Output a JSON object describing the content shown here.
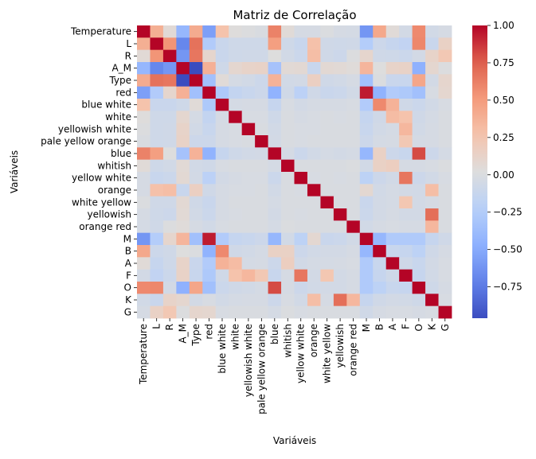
{
  "chart_data": {
    "type": "heatmap",
    "title": "Matriz de Correlação",
    "xlabel": "Variáveis",
    "ylabel": "Variáveis",
    "variables": [
      "Temperature",
      "L",
      "R",
      "A_M",
      "Type",
      "red",
      "blue white",
      "white",
      "yellowish white",
      "pale yellow orange",
      "blue",
      "whitish",
      "yellow white",
      "orange",
      "white yellow",
      "yellowish",
      "orange red",
      "M",
      "B",
      "A",
      "F",
      "O",
      "K",
      "G"
    ],
    "matrix": [
      [
        1.0,
        0.39,
        0.06,
        -0.42,
        0.41,
        -0.56,
        0.27,
        0.03,
        0.01,
        -0.01,
        0.61,
        0.05,
        -0.03,
        -0.03,
        0.0,
        -0.03,
        -0.04,
        -0.61,
        0.43,
        0.05,
        -0.05,
        0.58,
        -0.06,
        -0.03
      ],
      [
        0.39,
        1.0,
        0.53,
        -0.69,
        0.68,
        -0.26,
        -0.11,
        -0.08,
        -0.08,
        -0.08,
        0.48,
        -0.08,
        -0.12,
        0.28,
        -0.07,
        -0.08,
        -0.07,
        -0.25,
        -0.09,
        -0.13,
        -0.16,
        0.59,
        -0.11,
        0.14
      ],
      [
        0.06,
        0.53,
        1.0,
        -0.61,
        0.66,
        0.1,
        -0.11,
        -0.08,
        -0.07,
        -0.07,
        0.02,
        -0.06,
        -0.1,
        0.3,
        -0.07,
        -0.09,
        0.01,
        0.1,
        -0.07,
        -0.08,
        -0.1,
        -0.05,
        0.12,
        0.23
      ],
      [
        -0.42,
        -0.69,
        -0.61,
        1.0,
        -0.96,
        0.38,
        -0.08,
        0.09,
        0.12,
        0.13,
        -0.33,
        0.06,
        0.07,
        -0.12,
        0.07,
        0.06,
        0.04,
        0.35,
        0.02,
        0.12,
        0.13,
        -0.46,
        0.09,
        0.01
      ],
      [
        0.41,
        0.68,
        0.66,
        -0.96,
        1.0,
        -0.35,
        0.05,
        -0.04,
        -0.06,
        -0.09,
        0.37,
        -0.06,
        -0.05,
        0.16,
        -0.07,
        -0.06,
        -0.03,
        -0.35,
        0.0,
        -0.11,
        -0.12,
        0.44,
        -0.05,
        0.1
      ],
      [
        -0.56,
        -0.26,
        0.1,
        0.38,
        -0.35,
        1.0,
        -0.28,
        -0.15,
        -0.12,
        -0.09,
        -0.45,
        -0.07,
        -0.2,
        -0.07,
        -0.11,
        -0.1,
        -0.06,
        0.94,
        -0.45,
        -0.26,
        -0.28,
        -0.35,
        -0.02,
        0.09
      ],
      [
        0.27,
        -0.11,
        -0.11,
        -0.08,
        0.05,
        -0.28,
        1.0,
        -0.04,
        -0.03,
        -0.03,
        -0.13,
        -0.02,
        -0.05,
        -0.03,
        -0.03,
        -0.03,
        -0.02,
        -0.26,
        0.58,
        0.37,
        -0.07,
        -0.1,
        -0.06,
        -0.02
      ],
      [
        0.03,
        -0.08,
        -0.08,
        0.09,
        -0.04,
        -0.15,
        -0.04,
        1.0,
        -0.02,
        -0.02,
        -0.08,
        -0.01,
        -0.03,
        -0.02,
        -0.01,
        -0.02,
        -0.01,
        -0.14,
        -0.07,
        0.31,
        0.27,
        -0.07,
        -0.04,
        -0.01
      ],
      [
        0.01,
        -0.08,
        -0.07,
        0.12,
        -0.06,
        -0.12,
        -0.03,
        -0.02,
        1.0,
        -0.01,
        -0.06,
        -0.01,
        -0.02,
        -0.02,
        -0.01,
        -0.01,
        -0.01,
        -0.12,
        -0.06,
        -0.04,
        0.34,
        -0.06,
        -0.03,
        -0.01
      ],
      [
        -0.01,
        -0.08,
        -0.07,
        0.13,
        -0.09,
        -0.09,
        -0.03,
        -0.02,
        -0.01,
        1.0,
        -0.05,
        -0.01,
        -0.02,
        -0.01,
        -0.01,
        -0.01,
        -0.01,
        -0.09,
        -0.04,
        -0.03,
        0.23,
        -0.04,
        -0.03,
        -0.01
      ],
      [
        0.61,
        0.48,
        0.02,
        -0.33,
        0.37,
        -0.45,
        -0.13,
        -0.08,
        -0.06,
        -0.05,
        1.0,
        -0.04,
        -0.1,
        -0.06,
        -0.04,
        -0.05,
        -0.04,
        -0.42,
        0.14,
        -0.09,
        -0.12,
        0.81,
        -0.09,
        -0.04
      ],
      [
        0.05,
        -0.08,
        -0.06,
        0.06,
        -0.06,
        -0.07,
        -0.02,
        -0.01,
        -0.01,
        -0.01,
        -0.04,
        1.0,
        -0.01,
        -0.01,
        -0.01,
        -0.01,
        0.0,
        -0.06,
        0.14,
        0.17,
        -0.03,
        -0.03,
        -0.02,
        0.0
      ],
      [
        -0.03,
        -0.12,
        -0.1,
        0.07,
        -0.05,
        -0.2,
        -0.05,
        -0.03,
        -0.02,
        -0.02,
        -0.1,
        -0.01,
        1.0,
        -0.02,
        -0.01,
        -0.02,
        -0.01,
        -0.19,
        -0.09,
        -0.06,
        0.66,
        -0.09,
        -0.06,
        -0.02
      ],
      [
        -0.03,
        0.28,
        0.3,
        -0.12,
        0.16,
        -0.07,
        -0.03,
        -0.02,
        -0.02,
        -0.01,
        -0.06,
        -0.01,
        -0.02,
        1.0,
        -0.01,
        -0.01,
        -0.01,
        0.08,
        -0.06,
        -0.04,
        -0.05,
        -0.06,
        0.3,
        -0.01
      ],
      [
        0.0,
        -0.07,
        -0.07,
        0.07,
        -0.07,
        -0.11,
        -0.03,
        -0.01,
        -0.01,
        -0.01,
        -0.04,
        -0.01,
        -0.01,
        -0.01,
        1.0,
        -0.01,
        -0.01,
        -0.11,
        -0.05,
        -0.04,
        0.24,
        -0.05,
        -0.03,
        -0.01
      ],
      [
        -0.03,
        -0.08,
        -0.09,
        0.06,
        -0.06,
        -0.1,
        -0.03,
        -0.02,
        -0.01,
        -0.01,
        -0.05,
        -0.01,
        -0.02,
        -0.01,
        -0.01,
        1.0,
        -0.01,
        -0.1,
        -0.05,
        -0.03,
        -0.05,
        -0.05,
        0.69,
        -0.01
      ],
      [
        -0.04,
        -0.07,
        0.01,
        0.04,
        -0.03,
        -0.06,
        -0.02,
        -0.01,
        -0.01,
        -0.01,
        -0.04,
        0.0,
        -0.01,
        -0.01,
        -0.01,
        -0.01,
        1.0,
        -0.06,
        -0.03,
        -0.02,
        -0.03,
        -0.03,
        0.34,
        -0.01
      ],
      [
        -0.61,
        -0.25,
        0.1,
        0.35,
        -0.35,
        0.94,
        -0.26,
        -0.14,
        -0.12,
        -0.09,
        -0.42,
        -0.06,
        -0.19,
        0.08,
        -0.11,
        -0.1,
        -0.06,
        1.0,
        -0.42,
        -0.27,
        -0.27,
        -0.27,
        -0.13,
        -0.07
      ],
      [
        0.43,
        -0.09,
        -0.07,
        0.02,
        0.0,
        -0.45,
        0.58,
        -0.07,
        -0.06,
        -0.04,
        0.14,
        0.14,
        -0.09,
        -0.06,
        -0.05,
        -0.05,
        -0.03,
        -0.42,
        1.0,
        -0.12,
        -0.13,
        -0.19,
        -0.07,
        -0.03
      ],
      [
        0.05,
        -0.13,
        -0.08,
        0.12,
        -0.11,
        -0.26,
        0.37,
        0.31,
        -0.04,
        -0.03,
        -0.09,
        0.17,
        -0.06,
        -0.04,
        -0.04,
        -0.03,
        -0.02,
        -0.27,
        -0.12,
        1.0,
        -0.08,
        -0.12,
        -0.05,
        -0.02
      ],
      [
        -0.05,
        -0.16,
        -0.1,
        0.13,
        -0.12,
        -0.28,
        -0.07,
        0.27,
        0.34,
        0.23,
        -0.12,
        -0.03,
        0.66,
        -0.05,
        0.24,
        -0.05,
        -0.03,
        -0.27,
        -0.13,
        -0.08,
        1.0,
        -0.13,
        -0.06,
        -0.02
      ],
      [
        0.58,
        0.59,
        -0.05,
        -0.46,
        0.44,
        -0.35,
        -0.1,
        -0.07,
        -0.06,
        -0.04,
        0.81,
        -0.03,
        -0.09,
        -0.06,
        -0.05,
        -0.05,
        -0.03,
        -0.27,
        -0.19,
        -0.12,
        -0.13,
        1.0,
        -0.08,
        -0.03
      ],
      [
        -0.06,
        -0.11,
        0.12,
        0.09,
        -0.05,
        -0.02,
        -0.06,
        -0.04,
        -0.03,
        -0.03,
        -0.09,
        -0.02,
        -0.06,
        0.3,
        -0.03,
        0.69,
        0.34,
        -0.13,
        -0.07,
        -0.05,
        -0.06,
        -0.08,
        1.0,
        -0.02
      ],
      [
        -0.03,
        0.14,
        0.23,
        0.01,
        0.1,
        0.09,
        -0.02,
        -0.01,
        -0.01,
        -0.01,
        -0.04,
        0.0,
        -0.02,
        -0.01,
        -0.01,
        -0.01,
        -0.01,
        -0.07,
        -0.03,
        -0.02,
        -0.02,
        -0.03,
        -0.02,
        1.0
      ]
    ],
    "colormap": "coolwarm",
    "vmin": -0.96,
    "vmax": 1.0,
    "colorbar_ticks": [
      1.0,
      0.75,
      0.5,
      0.25,
      0.0,
      -0.25,
      -0.5,
      -0.75
    ],
    "colorbar_tick_labels": [
      "1.00",
      "0.75",
      "0.50",
      "0.25",
      "0.00",
      "−0.25",
      "−0.50",
      "−0.75"
    ]
  }
}
